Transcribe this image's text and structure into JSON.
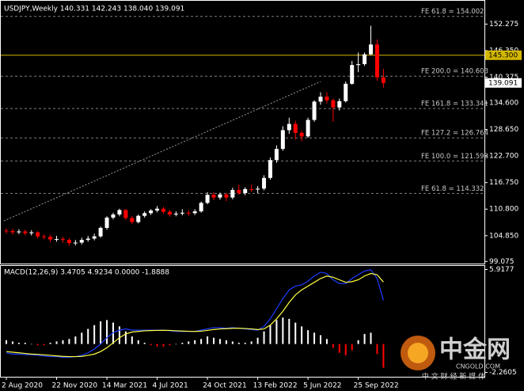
{
  "chart_data": {
    "type": "candlestick",
    "title": "USDJPY,Weekly  140.331 142.243 138.040 139.091",
    "categories": [
      "2 Aug 2020",
      null,
      null,
      null,
      null,
      null,
      null,
      null,
      "22 Nov 2020",
      null,
      null,
      null,
      null,
      null,
      null,
      null,
      "14 Mar 2021",
      null,
      null,
      null,
      null,
      null,
      null,
      null,
      "4 Jul 2021",
      null,
      null,
      null,
      null,
      null,
      null,
      null,
      "24 Oct 2021",
      null,
      null,
      null,
      null,
      null,
      null,
      null,
      "13 Feb 2022",
      null,
      null,
      null,
      null,
      null,
      null,
      null,
      "5 Jun 2022",
      null,
      null,
      null,
      null,
      null,
      null,
      null,
      "25 Sep 2022",
      null,
      null,
      null,
      null
    ],
    "open": [
      106.0,
      105.9,
      105.6,
      105.8,
      105.4,
      105.6,
      104.7,
      104.6,
      104.0,
      104.1,
      103.9,
      103.2,
      103.3,
      103.9,
      104.2,
      104.7,
      106.6,
      108.9,
      109.6,
      110.6,
      108.8,
      107.9,
      109.3,
      109.9,
      110.5,
      110.9,
      110.2,
      109.6,
      109.8,
      110.0,
      109.9,
      110.3,
      112.2,
      114.0,
      113.4,
      114.1,
      113.4,
      115.1,
      114.4,
      115.3,
      115.2,
      115.4,
      117.8,
      121.8,
      124.3,
      128.5,
      129.9,
      127.9,
      127.1,
      130.8,
      134.9,
      136.0,
      135.2,
      133.6,
      135.0,
      138.9,
      143.1,
      143.3,
      145.5,
      147.7,
      140.331
    ],
    "high": [
      106.5,
      106.4,
      106.3,
      106.2,
      106.1,
      105.9,
      105.2,
      105.1,
      104.8,
      104.6,
      104.3,
      103.9,
      104.4,
      104.8,
      105.3,
      106.9,
      109.2,
      110.0,
      110.9,
      110.8,
      109.3,
      109.6,
      110.3,
      110.8,
      111.5,
      111.3,
      110.6,
      110.3,
      110.8,
      110.5,
      110.8,
      112.5,
      114.6,
      114.6,
      114.5,
      114.4,
      115.6,
      116.3,
      115.7,
      116.3,
      116.0,
      118.4,
      122.4,
      125.1,
      129.4,
      131.3,
      130.6,
      128.4,
      131.3,
      135.2,
      137.0,
      137.0,
      135.6,
      135.6,
      139.4,
      144.0,
      145.9,
      145.9,
      151.9,
      148.8,
      142.243
    ],
    "low": [
      105.3,
      105.1,
      105.2,
      104.9,
      104.9,
      104.2,
      104.0,
      103.4,
      103.5,
      103.3,
      102.6,
      102.7,
      102.9,
      103.5,
      103.8,
      104.4,
      106.2,
      108.5,
      109.2,
      108.4,
      107.5,
      107.6,
      108.9,
      109.5,
      110.1,
      109.8,
      109.1,
      109.2,
      109.4,
      109.3,
      109.5,
      110.0,
      111.9,
      112.8,
      112.9,
      112.6,
      113.0,
      114.0,
      113.9,
      114.6,
      114.4,
      115.0,
      117.4,
      121.2,
      123.9,
      127.7,
      126.4,
      126.0,
      126.8,
      130.4,
      134.2,
      134.5,
      130.4,
      132.9,
      134.7,
      138.7,
      141.5,
      142.9,
      145.3,
      139.6,
      138.04
    ],
    "close": [
      105.9,
      105.6,
      105.8,
      105.4,
      105.6,
      104.7,
      104.6,
      104.0,
      104.1,
      103.9,
      103.2,
      103.3,
      103.9,
      104.2,
      104.7,
      106.6,
      108.9,
      109.6,
      110.6,
      108.8,
      107.9,
      109.3,
      109.9,
      110.5,
      110.9,
      110.2,
      109.6,
      109.8,
      110.0,
      109.9,
      110.3,
      112.2,
      114.0,
      113.4,
      114.1,
      113.4,
      115.1,
      114.4,
      115.3,
      115.2,
      115.4,
      117.8,
      121.8,
      124.3,
      128.5,
      129.9,
      127.9,
      127.1,
      130.8,
      134.9,
      136.0,
      135.2,
      133.6,
      135.0,
      138.9,
      143.1,
      143.3,
      145.5,
      147.7,
      140.331,
      139.091
    ],
    "up_color": "#ffffff",
    "down_color": "#ff0000",
    "ylim": [
      98.6,
      157.5
    ],
    "yticks": [
      152.275,
      {
        "value": 146.35,
        "label": "146.350"
      },
      140.375,
      {
        "value": 134.6,
        "label": "134.600"
      },
      {
        "value": 128.65,
        "label": "128.650"
      },
      {
        "value": 122.7,
        "label": "122.700"
      },
      {
        "value": 116.75,
        "label": "116.750"
      },
      {
        "value": 110.8,
        "label": "110.800"
      },
      {
        "value": 104.85,
        "label": "104.850"
      },
      99.075
    ],
    "levels": [
      {
        "label": "FE 61.8 = 154.002",
        "value": 154.002
      },
      {
        "label": "FE 200.0 = 140.603",
        "value": 140.603
      },
      {
        "label": "FE 161.8 = 133.341",
        "value": 133.341
      },
      {
        "label": "FE 127.2 = 126.764",
        "value": 126.764
      },
      {
        "label": "FE 100.0 = 121.593",
        "value": 121.593
      },
      {
        "label": "FE 61.8 = 114.332",
        "value": 114.332
      }
    ],
    "hline": {
      "value": 145.3,
      "label": "145.300"
    },
    "hline_color": "#d4b800",
    "macd": {
      "title": "MACD(12,26,9) 3.4705 4.9234 0.0000 -1.8888",
      "ylim": [
        -2.6,
        6.2
      ],
      "yticks": [
        5.9177,
        -2.2605
      ],
      "histogram": [
        0.3,
        0.2,
        0.1,
        0.1,
        0.0,
        -0.1,
        -0.1,
        0.1,
        0.2,
        0.3,
        0.4,
        0.6,
        0.9,
        1.2,
        1.5,
        1.8,
        1.9,
        1.7,
        1.4,
        1.0,
        0.6,
        0.3,
        0.1,
        -0.1,
        -0.2,
        -0.2,
        -0.1,
        0.0,
        0.1,
        0.2,
        0.3,
        0.4,
        0.6,
        0.5,
        0.4,
        0.3,
        0.2,
        0.1,
        0.1,
        0.2,
        0.5,
        1.0,
        1.5,
        1.9,
        2.1,
        2.0,
        1.7,
        1.4,
        1.1,
        0.9,
        0.7,
        0.4,
        -0.3,
        -0.7,
        -0.9,
        -0.5,
        0.3,
        0.8,
        0.9,
        -0.8,
        -1.8888
      ],
      "main": [
        -0.7,
        -0.8,
        -0.8,
        -0.85,
        -0.85,
        -0.9,
        -0.95,
        -1.0,
        -1.0,
        -1.05,
        -1.05,
        -1.0,
        -0.9,
        -0.7,
        -0.4,
        0.0,
        0.5,
        0.9,
        1.1,
        1.2,
        1.1,
        1.1,
        1.1,
        1.1,
        1.1,
        1.1,
        1.05,
        1.0,
        1.0,
        1.0,
        1.0,
        1.1,
        1.2,
        1.3,
        1.3,
        1.25,
        1.3,
        1.25,
        1.2,
        1.15,
        1.1,
        1.4,
        2.0,
        2.8,
        3.6,
        4.3,
        4.6,
        4.7,
        5.0,
        5.4,
        5.7,
        5.6,
        5.1,
        4.8,
        4.8,
        5.2,
        5.5,
        5.8,
        5.9,
        5.2,
        3.4705
      ],
      "signal": [
        -0.6,
        -0.65,
        -0.7,
        -0.75,
        -0.8,
        -0.82,
        -0.86,
        -0.9,
        -0.94,
        -0.98,
        -1.0,
        -1.0,
        -0.98,
        -0.9,
        -0.8,
        -0.6,
        -0.3,
        0.1,
        0.5,
        0.8,
        0.95,
        1.0,
        1.05,
        1.07,
        1.08,
        1.09,
        1.08,
        1.05,
        1.03,
        1.01,
        1.0,
        1.02,
        1.08,
        1.15,
        1.2,
        1.22,
        1.25,
        1.25,
        1.23,
        1.2,
        1.15,
        1.2,
        1.5,
        2.0,
        2.6,
        3.3,
        3.9,
        4.3,
        4.6,
        4.9,
        5.2,
        5.4,
        5.3,
        5.1,
        4.9,
        4.95,
        5.1,
        5.4,
        5.6,
        5.5,
        4.9234
      ],
      "main_color": "#1e3cff",
      "signal_color": "#ffff40",
      "up_color": "#ffffff",
      "down_color": "#ff0000"
    }
  },
  "watermark": {
    "name": "中金网",
    "domain": "CNGOLD.COM",
    "slogan": "中 文 财 经 新 媒 体"
  }
}
